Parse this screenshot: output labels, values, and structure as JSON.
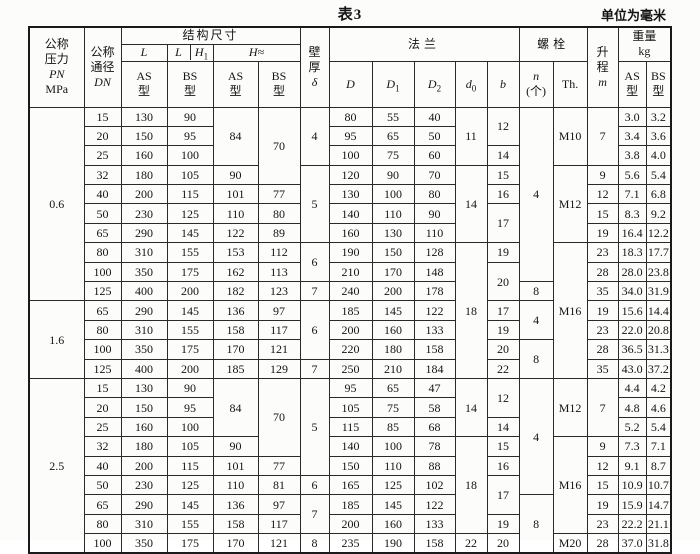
{
  "title": "表3",
  "unit_note": "单位为毫米",
  "header": {
    "pn_lines": [
      "公称",
      "压力",
      "PN",
      "MPa"
    ],
    "dn_lines": [
      "公称",
      "通径",
      "DN"
    ],
    "structure": "结构尺寸",
    "l": "L",
    "l2": "L",
    "h1_base": "H",
    "h1_sub": "1",
    "h_approx": "H≈",
    "as": "AS",
    "bs": "BS",
    "type_char": "型",
    "wall_lines": [
      "壁",
      "厚",
      "δ"
    ],
    "flange": "法兰",
    "d": "D",
    "d1_base": "D",
    "d1_sub": "1",
    "d2_base": "D",
    "d2_sub": "2",
    "d0_base": "d",
    "d0_sub": "0",
    "b": "b",
    "bolt": "螺栓",
    "n_base": "n",
    "n_unit": "(个)",
    "th_label": "Th.",
    "lift_lines": [
      "升",
      "程",
      "m"
    ],
    "weight_line1": "重量",
    "weight_line2": "kg"
  },
  "table": {
    "columns": [
      "公称压力PN MPa",
      "公称通径DN",
      "L AS型",
      "L/H1 BS型",
      "H≈ AS型",
      "H≈ BS型",
      "壁厚δ",
      "D",
      "D1",
      "D2",
      "d0",
      "b",
      "n(个)",
      "Th.",
      "升程m",
      "重量kg AS型",
      "重量kg BS型"
    ],
    "cell_format": "value|rowspan",
    "rows": [
      [
        "0.6|10",
        "15",
        "130",
        "90",
        "84|3",
        "70|4",
        "4|3",
        "80",
        "55",
        "40",
        "11|3",
        "12|2",
        "4|9",
        "M10|3",
        "7|3",
        "3.0",
        "3.2"
      ],
      [
        "20",
        "150",
        "95",
        "95",
        "65",
        "50",
        "3.4",
        "3.6"
      ],
      [
        "25",
        "160",
        "100",
        "100",
        "75",
        "60",
        "14",
        "3.8",
        "4.0"
      ],
      [
        "32",
        "180",
        "105",
        "90",
        "5|4",
        "120",
        "90",
        "70",
        "14|4",
        "15",
        "M12|4",
        "9",
        "5.6",
        "5.4"
      ],
      [
        "40",
        "200",
        "115",
        "101",
        "77",
        "130",
        "100",
        "80",
        "16",
        "12",
        "7.1",
        "6.8"
      ],
      [
        "50",
        "230",
        "125",
        "110",
        "80",
        "140",
        "110",
        "90",
        "17|2",
        "15",
        "8.3",
        "9.2"
      ],
      [
        "65",
        "290",
        "145",
        "122",
        "89",
        "160",
        "130",
        "110",
        "19",
        "16.4",
        "12.2"
      ],
      [
        "80",
        "310",
        "155",
        "153",
        "112",
        "6|2",
        "190",
        "150",
        "128",
        "18|7",
        "19",
        "M16|7",
        "23",
        "18.3",
        "17.7"
      ],
      [
        "100",
        "350",
        "175",
        "162",
        "113",
        "210",
        "170",
        "148",
        "20|2",
        "28",
        "28.0",
        "23.8"
      ],
      [
        "125",
        "400",
        "200",
        "182",
        "123",
        "7",
        "240",
        "200",
        "178",
        "8",
        "35",
        "34.0",
        "31.9"
      ],
      [
        "1.6|4",
        "65",
        "290",
        "145",
        "136",
        "97",
        "6|3",
        "185",
        "145",
        "122",
        "17",
        "4|2",
        "19",
        "15.6",
        "14.4"
      ],
      [
        "80",
        "310",
        "155",
        "158",
        "117",
        "200",
        "160",
        "133",
        "19",
        "23",
        "22.0",
        "20.8"
      ],
      [
        "100",
        "350",
        "175",
        "170",
        "121",
        "220",
        "180",
        "158",
        "20",
        "8|2",
        "28",
        "36.5",
        "31.3"
      ],
      [
        "125",
        "400",
        "200",
        "185",
        "129",
        "7",
        "250",
        "210",
        "184",
        "22",
        "35",
        "43.0",
        "37.2"
      ],
      [
        "2.5|9",
        "15",
        "130",
        "90",
        "84|3",
        "70|4",
        "5|5",
        "95",
        "65",
        "47",
        "14|3",
        "12|2",
        "4|6",
        "M12|3",
        "7|3",
        "4.4",
        "4.2"
      ],
      [
        "20",
        "150",
        "95",
        "105",
        "75",
        "58",
        "4.8",
        "4.6"
      ],
      [
        "25",
        "160",
        "100",
        "115",
        "85",
        "68",
        "14",
        "5.2",
        "5.4"
      ],
      [
        "32",
        "180",
        "105",
        "90",
        "140",
        "100",
        "78",
        "18|5",
        "15",
        "M16|5",
        "9",
        "7.3",
        "7.1"
      ],
      [
        "40",
        "200",
        "115",
        "101",
        "77",
        "150",
        "110",
        "88",
        "16",
        "12",
        "9.1",
        "8.7"
      ],
      [
        "50",
        "230",
        "125",
        "110",
        "81",
        "6",
        "165",
        "125",
        "102",
        "17|2",
        "15",
        "10.9",
        "10.7"
      ],
      [
        "65",
        "290",
        "145",
        "136",
        "97",
        "7|2",
        "185",
        "145",
        "122",
        "8|3",
        "19",
        "15.9",
        "14.7"
      ],
      [
        "80",
        "310",
        "155",
        "158",
        "117",
        "200",
        "160",
        "133",
        "19",
        "23",
        "22.2",
        "21.1"
      ],
      [
        "100",
        "350",
        "175",
        "170",
        "121",
        "8",
        "235",
        "190",
        "158",
        "22",
        "20",
        "M20",
        "28",
        "37.0",
        "31.8"
      ]
    ]
  }
}
